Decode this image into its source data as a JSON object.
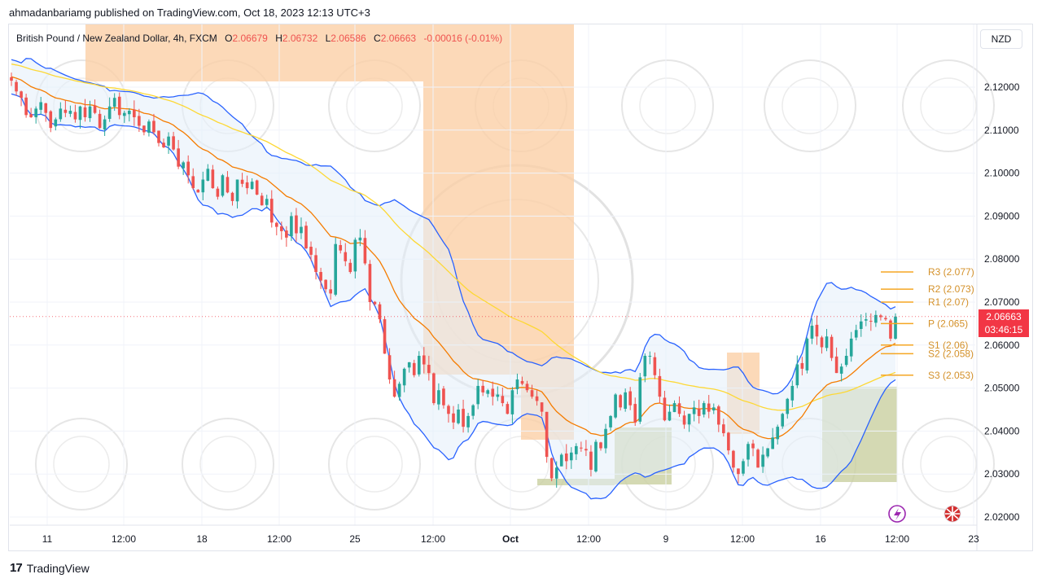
{
  "publisher_line": "ahmadanbariamg published on TradingView.com, Oct 18, 2023 12:13 UTC+3",
  "legend": {
    "symbol": "British Pound / New Zealand Dollar, 4h, FXCM",
    "o_label": "O",
    "o_value": "2.06679",
    "h_label": "H",
    "h_value": "2.06732",
    "l_label": "L",
    "l_value": "2.06586",
    "c_label": "C",
    "c_value": "2.06663",
    "change": "-0.00016 (-0.01%)"
  },
  "currency": "NZD",
  "last_price": {
    "price": "2.06663",
    "countdown": "03:46:15"
  },
  "footer_brand": "TradingView",
  "colors": {
    "up": "#26a69a",
    "down": "#ef5350",
    "bollinger": "#2962ff",
    "ema_fast": "#f57c00",
    "ema_slow": "#fdd835",
    "zone_supply": "#fbd0a6",
    "zone_demand": "#c9cfa0",
    "pivot": "#f5a623",
    "band_fill": "#e3eefa"
  },
  "chart_data": {
    "type": "candlestick",
    "title": "British Pound / New Zealand Dollar, 4h, FXCM",
    "ylim": [
      2.0175,
      2.1275
    ],
    "y_ticks": [
      "2.12000",
      "2.11000",
      "2.10000",
      "2.09000",
      "2.08000",
      "2.07000",
      "2.06000",
      "2.05000",
      "2.04000",
      "2.03000",
      "2.02000"
    ],
    "x_ticks": [
      "11",
      "12:00",
      "18",
      "12:00",
      "25",
      "12:00",
      "Oct",
      "12:00",
      "9",
      "12:00",
      "16",
      "12:00",
      "23"
    ],
    "closes": [
      2.1215,
      2.119,
      2.1175,
      2.1135,
      2.113,
      2.115,
      2.1165,
      2.114,
      2.1105,
      2.1125,
      2.115,
      2.114,
      2.1145,
      2.1125,
      2.1155,
      2.113,
      2.1155,
      2.114,
      2.1105,
      2.1125,
      2.1155,
      2.1175,
      2.1135,
      2.114,
      2.1145,
      2.113,
      2.111,
      2.1095,
      2.112,
      2.1095,
      2.107,
      2.106,
      2.1085,
      2.1055,
      2.1015,
      2.1025,
      2.0995,
      2.0965,
      2.0955,
      2.0985,
      2.101,
      2.0965,
      2.0945,
      2.0995,
      2.0955,
      2.0935,
      2.0985,
      2.0975,
      2.0965,
      2.098,
      2.095,
      2.0925,
      2.094,
      2.0885,
      2.0875,
      2.0865,
      2.085,
      2.09,
      2.086,
      2.0875,
      2.0825,
      2.081,
      2.077,
      2.075,
      2.073,
      2.072,
      2.0835,
      2.082,
      2.0795,
      2.077,
      2.0845,
      2.085,
      2.079,
      2.07,
      2.0695,
      2.066,
      2.058,
      2.052,
      2.048,
      2.051,
      2.0545,
      2.056,
      2.053,
      2.0575,
      2.0555,
      2.0535,
      2.0465,
      2.0495,
      2.046,
      2.044,
      2.042,
      2.045,
      2.041,
      2.0435,
      2.046,
      2.0505,
      2.049,
      2.0495,
      2.048,
      2.0485,
      2.0465,
      2.044,
      2.0495,
      2.052,
      2.051,
      2.0495,
      2.048,
      2.047,
      2.0445,
      2.034,
      2.029,
      2.0315,
      2.0345,
      2.033,
      2.035,
      2.0365,
      2.036,
      2.0355,
      2.031,
      2.0375,
      2.036,
      2.0405,
      2.0435,
      2.0485,
      2.0455,
      2.049,
      2.046,
      2.042,
      2.0525,
      2.0575,
      2.0575,
      2.053,
      2.048,
      2.0425,
      2.0445,
      2.0465,
      2.044,
      2.0415,
      2.044,
      2.0455,
      2.0435,
      2.0465,
      2.0445,
      2.0455,
      2.0415,
      2.0395,
      2.0355,
      2.0315,
      2.03,
      2.033,
      2.037,
      2.036,
      2.0315,
      2.0345,
      2.036,
      2.0385,
      2.041,
      2.044,
      2.0475,
      2.0505,
      2.0555,
      2.0545,
      2.0615,
      2.0645,
      2.062,
      2.0595,
      2.062,
      2.057,
      2.0535,
      2.055,
      2.0575,
      2.0615,
      2.0635,
      2.0655,
      2.066,
      2.0655,
      2.067,
      2.0665,
      2.066,
      2.0615,
      2.06663
    ]
  }
}
